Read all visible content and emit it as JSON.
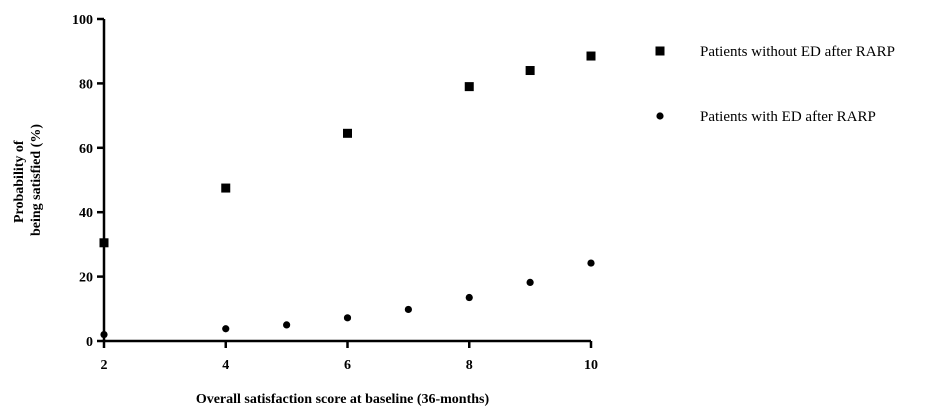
{
  "chart_data": {
    "type": "scatter",
    "title": "",
    "xlabel": "Overall satisfaction score at baseline (36-months)",
    "ylabel_lines": [
      "Probability of",
      "being satisfied (%)"
    ],
    "xlim": [
      2,
      10
    ],
    "ylim": [
      0,
      100
    ],
    "xticks": [
      "2",
      "4",
      "6",
      "8",
      "10"
    ],
    "yticks": [
      "0",
      "20",
      "40",
      "60",
      "80",
      "100"
    ],
    "legend_position": "top-right",
    "series": [
      {
        "name": "Patients without ED after RARP",
        "marker": "square",
        "color": "#000000",
        "points": [
          {
            "x": 2,
            "y": 30.5
          },
          {
            "x": 4,
            "y": 47.5
          },
          {
            "x": 6,
            "y": 64.5
          },
          {
            "x": 8,
            "y": 79
          },
          {
            "x": 9,
            "y": 84
          },
          {
            "x": 10,
            "y": 88.5
          }
        ]
      },
      {
        "name": "Patients with ED after RARP",
        "marker": "circle",
        "color": "#000000",
        "points": [
          {
            "x": 2,
            "y": 2
          },
          {
            "x": 4,
            "y": 3.8
          },
          {
            "x": 5,
            "y": 5
          },
          {
            "x": 6,
            "y": 7.2
          },
          {
            "x": 7,
            "y": 9.8
          },
          {
            "x": 8,
            "y": 13.5
          },
          {
            "x": 9,
            "y": 18.2
          },
          {
            "x": 10,
            "y": 24.2
          }
        ]
      }
    ]
  }
}
